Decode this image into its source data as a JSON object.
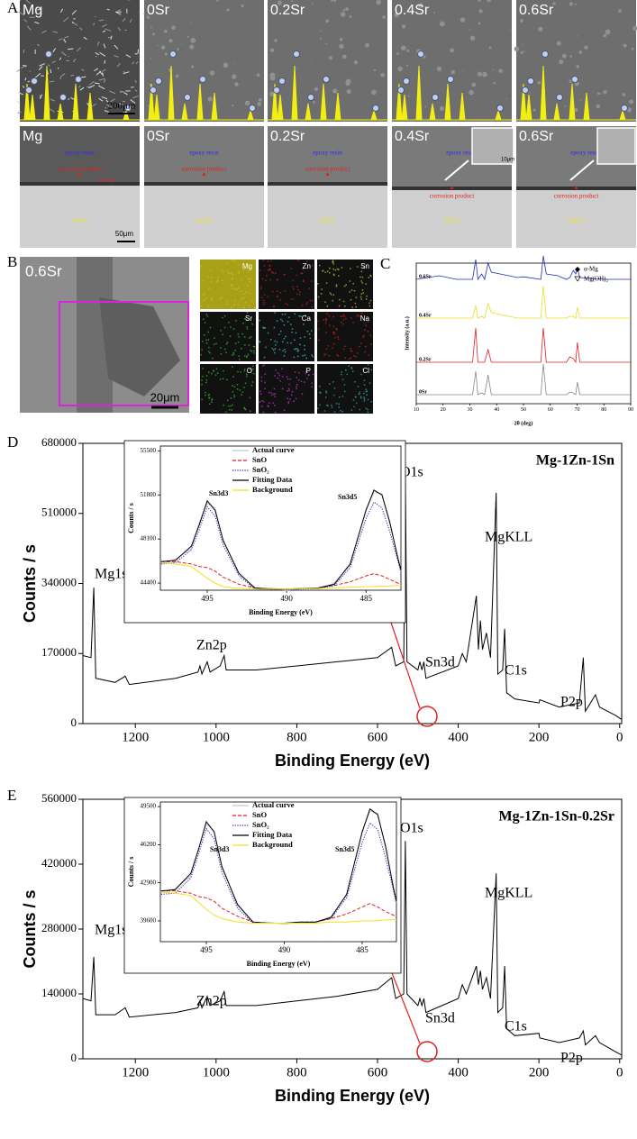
{
  "panel_labels": [
    "A",
    "B",
    "C",
    "D",
    "E"
  ],
  "sem": {
    "top_labels": [
      "Mg",
      "0Sr",
      "0.2Sr",
      "0.4Sr",
      "0.6Sr"
    ],
    "bottom_labels": [
      "Mg",
      "0Sr",
      "0.2Sr",
      "0.4Sr",
      "0.6Sr"
    ],
    "scale_top": "200μm",
    "scale_bottom": "50μm",
    "inset_scale": "10μm",
    "epoxy": "epoxy resin",
    "corrosion": "corrosion product",
    "matrix": "matrix",
    "pitting": "Pitting"
  },
  "mapping": {
    "label": "0.6Sr",
    "scale": "20μm",
    "elements": [
      "Mg",
      "Zn",
      "Sn",
      "Sr",
      "Ca",
      "Na",
      "O",
      "P",
      "Cl"
    ]
  },
  "chart_data": [
    {
      "type": "line",
      "xlabel": "2θ (deg)",
      "ylabel": "Intensity (a.u.)",
      "markers": [
        "α-Mg",
        "Mg(OH)₂"
      ],
      "x": [
        10,
        18.6,
        25,
        31,
        32.2,
        33,
        34.4,
        35.5,
        36.8,
        38,
        47.8,
        50,
        56.5,
        57.4,
        58.5,
        62.8,
        66,
        67.3,
        68.6,
        69.5,
        70.1,
        71,
        80,
        90
      ],
      "xlim": [
        10,
        90
      ],
      "xticks": [
        10,
        20,
        30,
        40,
        50,
        60,
        70,
        80,
        90
      ],
      "ylim": [
        0,
        100
      ],
      "series": [
        {
          "name": "0.6Sr",
          "color": "#1f2fbf",
          "values": [
            5,
            15,
            5,
            5,
            60,
            5,
            20,
            5,
            50,
            25,
            10,
            12,
            5,
            70,
            20,
            15,
            5,
            10,
            30,
            20,
            35,
            10,
            5,
            5
          ]
        },
        {
          "name": "0.4Sr",
          "color": "#e8e020",
          "values": [
            5,
            5,
            5,
            5,
            40,
            5,
            10,
            5,
            45,
            20,
            5,
            5,
            5,
            95,
            5,
            5,
            5,
            10,
            10,
            5,
            35,
            5,
            5,
            5
          ]
        },
        {
          "name": "0.2Sr",
          "color": "#e02020",
          "values": [
            5,
            5,
            5,
            5,
            100,
            5,
            5,
            5,
            40,
            5,
            5,
            5,
            5,
            100,
            5,
            5,
            5,
            20,
            15,
            5,
            60,
            5,
            5,
            5
          ]
        },
        {
          "name": "0Sr",
          "color": "#888888",
          "values": [
            5,
            5,
            5,
            5,
            70,
            5,
            10,
            5,
            60,
            5,
            5,
            5,
            5,
            90,
            5,
            5,
            5,
            12,
            10,
            5,
            40,
            5,
            5,
            5
          ]
        }
      ]
    },
    {
      "type": "line",
      "title": "Mg-1Zn-1Sn",
      "xlabel": "Binding Energy (eV)",
      "ylabel": "Counts / s",
      "annotations": [
        "Mg1s",
        "Zn2p",
        "O1s",
        "Sn3d",
        "MgKLL",
        "C1s",
        "P2p"
      ],
      "x": [
        1330,
        1310,
        1303,
        1298,
        1250,
        1225,
        1215,
        1100,
        1045,
        1040,
        1035,
        1022,
        1015,
        990,
        980,
        975,
        900,
        800,
        700,
        600,
        565,
        555,
        535,
        531,
        527,
        500,
        495,
        490,
        485,
        480,
        400,
        390,
        380,
        355,
        350,
        345,
        340,
        330,
        320,
        306,
        302,
        290,
        285,
        280,
        260,
        200,
        198,
        150,
        100,
        90,
        85,
        60,
        50,
        30,
        10,
        -5
      ],
      "xlim": [
        1330,
        -5
      ],
      "xticks": [
        1200,
        1000,
        800,
        600,
        400,
        200,
        0
      ],
      "ylim": [
        0,
        680000
      ],
      "yticks": [
        0,
        170000,
        340000,
        510000,
        680000
      ],
      "series": [
        {
          "color": "#000000",
          "values": [
            165000,
            160000,
            330000,
            110000,
            100000,
            115000,
            95000,
            110000,
            125000,
            140000,
            120000,
            150000,
            125000,
            140000,
            165000,
            130000,
            130000,
            140000,
            150000,
            160000,
            185000,
            140000,
            150000,
            600000,
            150000,
            130000,
            150000,
            130000,
            150000,
            110000,
            140000,
            170000,
            150000,
            310000,
            180000,
            250000,
            180000,
            220000,
            160000,
            560000,
            120000,
            130000,
            230000,
            75000,
            60000,
            50000,
            58000,
            40000,
            50000,
            160000,
            30000,
            70000,
            40000,
            30000,
            20000,
            10000
          ]
        }
      ]
    },
    {
      "type": "line",
      "xlabel": "Binding Energy (eV)",
      "ylabel": "Counts / s",
      "annotations": [
        "Sn3d3",
        "Sn3d5"
      ],
      "x": [
        497.9,
        497,
        496,
        495.5,
        495,
        494.5,
        494,
        493,
        492,
        491,
        490,
        489,
        488,
        487,
        486,
        485,
        484.5,
        484,
        483.5,
        483,
        482.8
      ],
      "xlim": [
        497.95,
        482.8
      ],
      "xticks": [
        495,
        490,
        485
      ],
      "ylim": [
        43800,
        55900
      ],
      "yticks": [
        44400,
        48100,
        51800,
        55500
      ],
      "series": [
        {
          "name": "Actual curve",
          "color": "#c8c8c8",
          "dash": "solid",
          "values": [
            46000,
            46400,
            47300,
            49500,
            51100,
            50700,
            47900,
            45300,
            43900,
            44000,
            43800,
            44000,
            43900,
            44400,
            45900,
            50600,
            52000,
            51900,
            49300,
            46700,
            45400
          ]
        },
        {
          "name": "SnO",
          "color": "#e02020",
          "dash": "dashed",
          "values": [
            46200,
            46200,
            46000,
            45800,
            45700,
            45400,
            44900,
            44300,
            44000,
            43900,
            43900,
            43950,
            44000,
            44200,
            44500,
            45000,
            45200,
            45000,
            44700,
            44400,
            44300
          ]
        },
        {
          "name": "SnO₂",
          "color": "#2020c0",
          "dash": "dotted",
          "values": [
            46000,
            46100,
            47200,
            48900,
            50800,
            50000,
            47600,
            45000,
            43900,
            43850,
            43850,
            43900,
            43950,
            44200,
            45700,
            49800,
            51200,
            50700,
            48700,
            46300,
            45300
          ]
        },
        {
          "name": "Fitting Data",
          "color": "#000000",
          "dash": "solid",
          "values": [
            46200,
            46300,
            47500,
            49300,
            51300,
            50500,
            48000,
            45200,
            44000,
            43900,
            43900,
            43950,
            44000,
            44300,
            46000,
            50500,
            52200,
            51800,
            49500,
            46500,
            45500
          ]
        },
        {
          "name": "Background",
          "color": "#f0e020",
          "dash": "solid",
          "values": [
            46100,
            46000,
            45800,
            45300,
            44800,
            44400,
            44100,
            43950,
            43900,
            43900,
            43900,
            43950,
            43950,
            44000,
            44050,
            44100,
            44100,
            44150,
            44150,
            44200,
            44200
          ]
        }
      ]
    },
    {
      "type": "line",
      "title": "Mg-1Zn-1Sn-0.2Sr",
      "xlabel": "Binding Energy (eV)",
      "ylabel": "Counts / s",
      "annotations": [
        "Mg1s",
        "Zn2p",
        "O1s",
        "Sn3d",
        "MgKLL",
        "C1s",
        "P2p"
      ],
      "x": [
        1330,
        1310,
        1303,
        1298,
        1250,
        1225,
        1215,
        1100,
        1045,
        1040,
        1035,
        1022,
        1015,
        990,
        980,
        975,
        900,
        800,
        700,
        600,
        565,
        555,
        535,
        531,
        527,
        500,
        495,
        490,
        485,
        480,
        400,
        390,
        380,
        355,
        350,
        345,
        340,
        330,
        320,
        306,
        302,
        290,
        285,
        280,
        260,
        200,
        198,
        150,
        100,
        90,
        85,
        60,
        50,
        30,
        10,
        -5
      ],
      "xlim": [
        1330,
        -5
      ],
      "xticks": [
        1200,
        1000,
        800,
        600,
        400,
        200,
        0
      ],
      "ylim": [
        0,
        560000
      ],
      "yticks": [
        0,
        140000,
        280000,
        420000,
        560000
      ],
      "series": [
        {
          "color": "#000000",
          "values": [
            130000,
            125000,
            220000,
            95000,
            95000,
            110000,
            90000,
            100000,
            110000,
            125000,
            110000,
            135000,
            115000,
            125000,
            145000,
            115000,
            115000,
            125000,
            135000,
            150000,
            175000,
            130000,
            140000,
            470000,
            140000,
            115000,
            130000,
            115000,
            130000,
            100000,
            130000,
            160000,
            140000,
            200000,
            160000,
            190000,
            150000,
            175000,
            130000,
            400000,
            100000,
            110000,
            200000,
            65000,
            50000,
            55000,
            45000,
            35000,
            45000,
            60000,
            30000,
            50000,
            35000,
            25000,
            15000,
            8000
          ]
        }
      ]
    },
    {
      "type": "line",
      "xlabel": "Binding Energy (eV)",
      "ylabel": "Counts / s",
      "annotations": [
        "Sn3d3",
        "Sn3d5"
      ],
      "x": [
        497.9,
        497,
        496,
        495.5,
        495,
        494.5,
        494,
        493,
        492,
        491,
        490,
        489,
        488,
        487,
        486,
        485,
        484.5,
        484,
        483.5,
        483,
        482.8
      ],
      "xlim": [
        497.95,
        482.8
      ],
      "xticks": [
        495,
        490,
        485
      ],
      "ylim": [
        37800,
        49900
      ],
      "yticks": [
        39600,
        42900,
        46200,
        49500
      ],
      "series": [
        {
          "name": "Actual curve",
          "color": "#c8c8c8",
          "dash": "solid",
          "values": [
            42000,
            42400,
            43500,
            45900,
            48000,
            47400,
            44200,
            41100,
            39400,
            39500,
            39300,
            39500,
            39400,
            40000,
            41800,
            47400,
            49100,
            48900,
            45900,
            42700,
            41200
          ]
        },
        {
          "name": "SnO",
          "color": "#e02020",
          "dash": "dashed",
          "values": [
            42200,
            42200,
            42000,
            41700,
            41600,
            41300,
            40700,
            40000,
            39500,
            39400,
            39400,
            39500,
            39500,
            39800,
            40200,
            40800,
            41100,
            40800,
            40400,
            40100,
            39900
          ]
        },
        {
          "name": "SnO₂",
          "color": "#2020c0",
          "dash": "dotted",
          "values": [
            41900,
            42000,
            43300,
            45400,
            47600,
            46700,
            43800,
            40700,
            39400,
            39400,
            39400,
            39400,
            39500,
            39800,
            41600,
            46400,
            48100,
            47500,
            45100,
            42300,
            41100
          ]
        },
        {
          "name": "Fitting Data",
          "color": "#000000",
          "dash": "solid",
          "values": [
            42200,
            42300,
            43700,
            45800,
            48200,
            47300,
            44300,
            41000,
            39500,
            39400,
            39400,
            39500,
            39500,
            39900,
            41900,
            47300,
            49300,
            48800,
            46100,
            42500,
            41300
          ]
        },
        {
          "name": "Background",
          "color": "#f0e020",
          "dash": "solid",
          "values": [
            42100,
            42000,
            41800,
            41200,
            40600,
            40100,
            39800,
            39500,
            39400,
            39400,
            39400,
            39400,
            39400,
            39500,
            39500,
            39600,
            39600,
            39600,
            39700,
            39700,
            39700
          ]
        }
      ]
    }
  ]
}
